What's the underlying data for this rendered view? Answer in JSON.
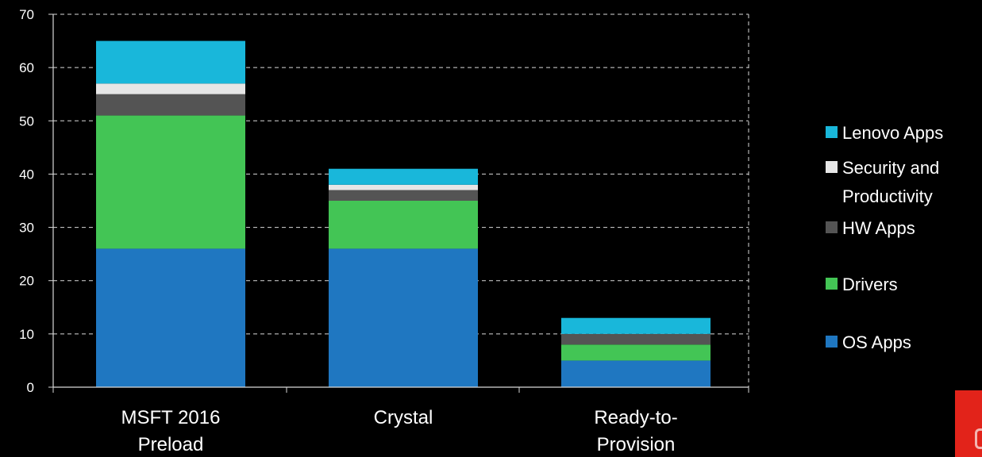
{
  "chart_data": {
    "type": "bar",
    "stacked": true,
    "categories": [
      [
        "MSFT 2016",
        "Preload"
      ],
      [
        "Crystal"
      ],
      [
        "Ready-to-",
        "Provision"
      ]
    ],
    "ylim": [
      0,
      70
    ],
    "yticks": [
      0,
      10,
      20,
      30,
      40,
      50,
      60,
      70
    ],
    "grid": true,
    "legend_position": "right",
    "series": [
      {
        "name": "OS Apps",
        "color": "#1f77c1",
        "values": [
          26,
          26,
          5
        ]
      },
      {
        "name": "Drivers",
        "color": "#43c555",
        "values": [
          25,
          9,
          3
        ]
      },
      {
        "name": "HW Apps",
        "color": "#545454",
        "values": [
          4,
          2,
          2
        ]
      },
      {
        "name": "Security and Productivity",
        "color": "#e6e6e6",
        "values": [
          2,
          1,
          0
        ]
      },
      {
        "name": "Lenovo Apps",
        "color": "#19b7da",
        "values": [
          8,
          3,
          3
        ]
      }
    ],
    "legend": [
      {
        "lines": [
          "Lenovo Apps"
        ],
        "color": "#19b7da"
      },
      {
        "lines": [
          "Security and",
          "Productivity"
        ],
        "color": "#e6e6e6"
      },
      {
        "lines": [
          "HW Apps"
        ],
        "color": "#545454"
      },
      {
        "lines": [
          "Drivers"
        ],
        "color": "#43c555"
      },
      {
        "lines": [
          "OS Apps"
        ],
        "color": "#1f77c1"
      }
    ]
  },
  "colors": {
    "background": "#000000",
    "axis": "#d9d9d9",
    "grid": "#d9d9d9",
    "text": "#ffffff",
    "logo": "#e2231a"
  }
}
